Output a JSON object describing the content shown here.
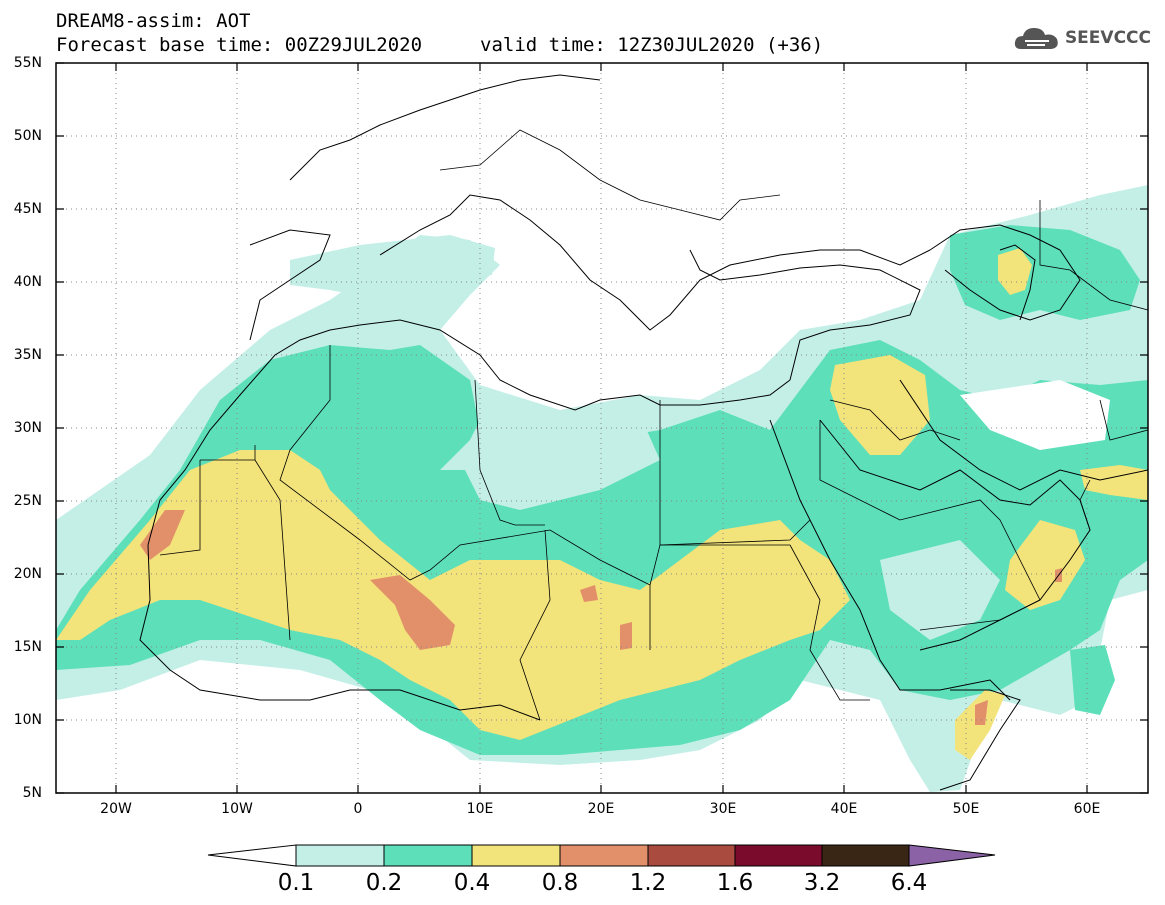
{
  "header": {
    "line1": "DREAM8-assim: AOT",
    "line2_base": "Forecast base time: 00Z29JUL2020",
    "line2_valid": "valid time: 12Z30JUL2020 (+36)",
    "logo_text": "SEEVCCC",
    "logo_icon": "cloud-logo-icon"
  },
  "map": {
    "lon_range": [
      -25,
      65
    ],
    "lat_range": [
      5,
      55
    ],
    "lat_labels": [
      "55N",
      "50N",
      "45N",
      "40N",
      "35N",
      "30N",
      "25N",
      "20N",
      "15N",
      "10N",
      "5N"
    ],
    "lon_labels": [
      "20W",
      "10W",
      "0",
      "10E",
      "20E",
      "30E",
      "40E",
      "50E",
      "60E"
    ],
    "grid": "dotted"
  },
  "colorbar": {
    "labels": [
      "0.1",
      "0.2",
      "0.4",
      "0.8",
      "1.2",
      "1.6",
      "3.2",
      "6.4"
    ],
    "colors": [
      "#ffffff",
      "#c3efe7",
      "#5ddfba",
      "#f3e37b",
      "#e2906a",
      "#a94b3e",
      "#7a0b2c",
      "#3a2615",
      "#8a62a5"
    ]
  }
}
